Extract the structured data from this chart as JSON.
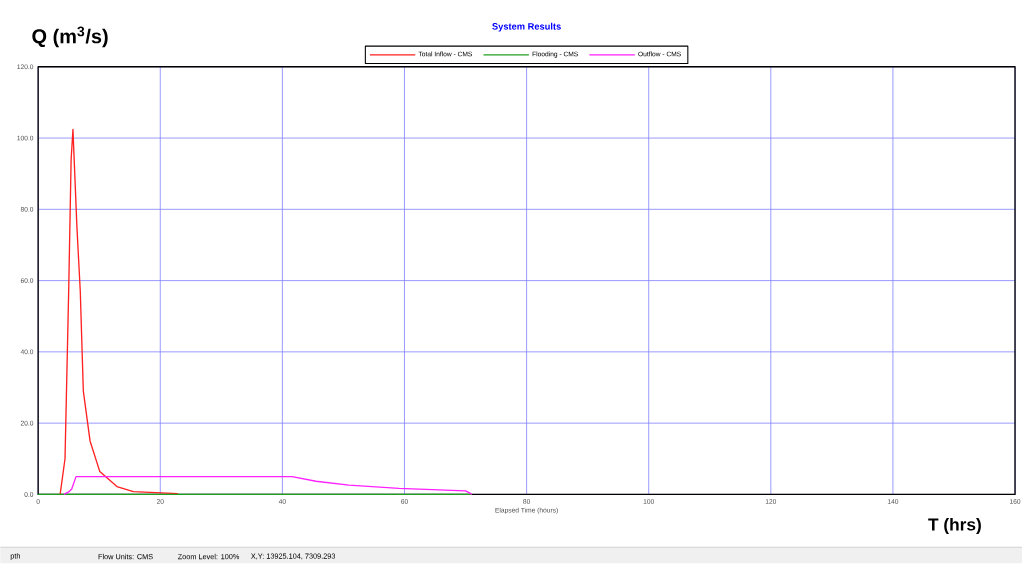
{
  "chart_data": {
    "type": "line",
    "title": "System Results",
    "xlabel": "Elapsed Time (hours)",
    "ylabel": "Q (m$^{3}$/s)",
    "annotations": [
      "T (hrs)",
      "pth",
      "Flow Units: CMS",
      "Zoom Level: 100%",
      "X,Y: 13925.104, 7309.293"
    ],
    "series": [
      {
        "name": "Total Inflow - CMS",
        "color": "#ff2020",
        "x": [
          3.6,
          4.4,
          5.0,
          5.4,
          5.7,
          6.35,
          6.9,
          7.4,
          8.5,
          10.1,
          12.9,
          15.6,
          22.9
        ],
        "values": [
          0,
          10,
          57,
          94,
          102.4,
          75,
          57,
          29,
          15,
          6.4,
          2.2,
          0.8,
          0.2
        ]
      },
      {
        "name": "Flooding - CMS",
        "color": "#20a020",
        "x": [
          0,
          71
        ],
        "values": [
          0,
          0
        ]
      },
      {
        "name": "Outflow - CMS",
        "color": "#ff20ff",
        "x": [
          4.2,
          5.0,
          5.5,
          6.2,
          41.6,
          45.5,
          50.9,
          59.1,
          70.0,
          70.8,
          71.0
        ],
        "values": [
          0,
          0.7,
          1.5,
          5.0,
          5.0,
          3.7,
          2.6,
          1.7,
          1.0,
          0.3,
          0
        ]
      }
    ],
    "xlim": [
      0,
      160
    ],
    "ylim": [
      0,
      120
    ],
    "xticks": [
      0,
      20,
      40,
      60,
      80,
      100,
      120,
      140,
      160
    ],
    "yticks": [
      {
        "value": 0,
        "label": "0.0"
      },
      {
        "value": 20,
        "label": "20.0"
      },
      {
        "value": 40,
        "label": "40.0"
      },
      {
        "value": 60,
        "label": "60.0"
      },
      {
        "value": 80,
        "label": "80.0"
      },
      {
        "value": 100,
        "label": "100.0"
      },
      {
        "value": 120,
        "label": "120.0"
      }
    ],
    "grid": true,
    "legend": "top",
    "marker": "none",
    "line_style": "solid"
  }
}
